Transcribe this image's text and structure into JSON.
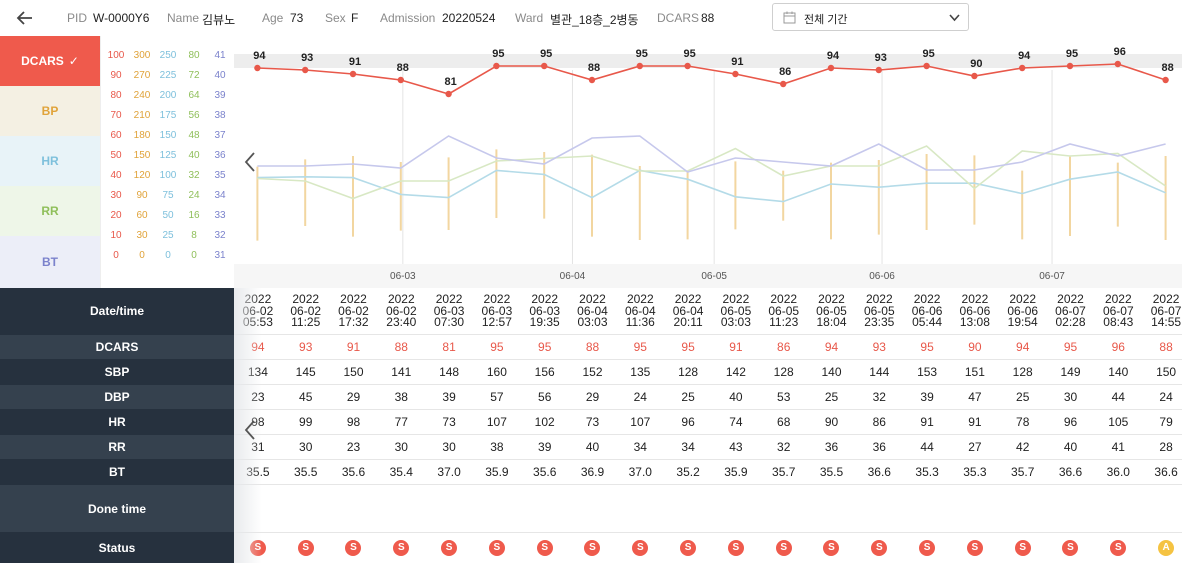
{
  "header": {
    "pid_label": "PID",
    "pid": "W-0000Y6",
    "name_label": "Name",
    "name": "김뷰노",
    "age_label": "Age",
    "age": "73",
    "sex_label": "Sex",
    "sex": "F",
    "admission_label": "Admission",
    "admission": "20220524",
    "ward_label": "Ward",
    "ward": "별관_18층_2병동",
    "dcars_label": "DCARS",
    "dcars": "88",
    "period_select": "전체 기간"
  },
  "legend": {
    "tabs": [
      {
        "label": "DCARS",
        "check": "✓",
        "color": "#ffffff",
        "bg": "#ef5a4c"
      },
      {
        "label": "BP",
        "color": "#e0a33a",
        "bg": "#f4f0e3"
      },
      {
        "label": "HR",
        "color": "#7ec0dc",
        "bg": "#e8f3f8"
      },
      {
        "label": "RR",
        "color": "#8fbf5a",
        "bg": "#eef6e8"
      },
      {
        "label": "BT",
        "color": "#7b82cc",
        "bg": "#eceef8"
      }
    ],
    "scales": [
      {
        "color": "#e8584a",
        "values": [
          "100",
          "90",
          "80",
          "70",
          "60",
          "50",
          "40",
          "30",
          "20",
          "10",
          "0"
        ]
      },
      {
        "color": "#e0a33a",
        "values": [
          "300",
          "270",
          "240",
          "210",
          "180",
          "150",
          "120",
          "90",
          "60",
          "30",
          "0"
        ]
      },
      {
        "color": "#7ec0dc",
        "values": [
          "250",
          "225",
          "200",
          "175",
          "150",
          "125",
          "100",
          "75",
          "50",
          "25",
          "0"
        ]
      },
      {
        "color": "#8fbf5a",
        "values": [
          "80",
          "72",
          "64",
          "56",
          "48",
          "40",
          "32",
          "24",
          "16",
          "8",
          "0"
        ]
      },
      {
        "color": "#7b82cc",
        "values": [
          "41",
          "40",
          "39",
          "38",
          "37",
          "36",
          "35",
          "34",
          "33",
          "32",
          "31"
        ]
      }
    ]
  },
  "colors": {
    "dcars": "#e8584a",
    "bp": "#f2d6a0",
    "hr": "#b4dbe8",
    "rr": "#d8e8c4",
    "bt": "#c6c8ec",
    "row_label_bg": "#26313e",
    "badge_s": "#ef5a4c",
    "badge_a": "#f5c342"
  },
  "chart_data": {
    "type": "line",
    "x_ticks": [
      "06-03",
      "06-04",
      "06-05",
      "06-06",
      "06-07"
    ],
    "series": [
      {
        "name": "DCARS",
        "values": [
          94,
          93,
          91,
          88,
          81,
          95,
          95,
          88,
          95,
          95,
          91,
          86,
          94,
          93,
          95,
          90,
          94,
          95,
          96,
          88
        ]
      },
      {
        "name": "SBP",
        "values": [
          134,
          145,
          150,
          141,
          148,
          160,
          156,
          152,
          135,
          128,
          142,
          128,
          140,
          144,
          153,
          151,
          128,
          149,
          140,
          150
        ]
      },
      {
        "name": "DBP",
        "values": [
          23,
          45,
          29,
          38,
          39,
          57,
          56,
          29,
          24,
          25,
          40,
          53,
          25,
          32,
          39,
          47,
          25,
          30,
          44,
          24
        ]
      },
      {
        "name": "HR",
        "values": [
          98,
          99,
          98,
          77,
          73,
          107,
          102,
          73,
          107,
          96,
          74,
          68,
          90,
          86,
          91,
          91,
          78,
          96,
          105,
          79
        ]
      },
      {
        "name": "RR",
        "values": [
          31,
          30,
          23,
          30,
          30,
          38,
          39,
          40,
          34,
          34,
          43,
          32,
          36,
          36,
          44,
          27,
          42,
          40,
          41,
          28
        ]
      },
      {
        "name": "BT",
        "values": [
          35.5,
          35.5,
          35.6,
          35.4,
          37.0,
          35.9,
          35.6,
          36.9,
          37.0,
          35.2,
          35.9,
          35.7,
          35.5,
          36.6,
          35.3,
          35.3,
          35.7,
          36.6,
          36.0,
          36.6
        ]
      }
    ]
  },
  "table": {
    "labels": {
      "datetime": "Date/time",
      "dcars": "DCARS",
      "sbp": "SBP",
      "dbp": "DBP",
      "hr": "HR",
      "rr": "RR",
      "bt": "BT",
      "done": "Done time",
      "status": "Status"
    },
    "columns": [
      {
        "year": "2022",
        "date": "06-02",
        "time": "05:53",
        "dcars": "94",
        "sbp": "134",
        "dbp": "23",
        "hr": "98",
        "rr": "31",
        "bt": "35.5",
        "status": "S"
      },
      {
        "year": "2022",
        "date": "06-02",
        "time": "11:25",
        "dcars": "93",
        "sbp": "145",
        "dbp": "45",
        "hr": "99",
        "rr": "30",
        "bt": "35.5",
        "status": "S"
      },
      {
        "year": "2022",
        "date": "06-02",
        "time": "17:32",
        "dcars": "91",
        "sbp": "150",
        "dbp": "29",
        "hr": "98",
        "rr": "23",
        "bt": "35.6",
        "status": "S"
      },
      {
        "year": "2022",
        "date": "06-02",
        "time": "23:40",
        "dcars": "88",
        "sbp": "141",
        "dbp": "38",
        "hr": "77",
        "rr": "30",
        "bt": "35.4",
        "status": "S"
      },
      {
        "year": "2022",
        "date": "06-03",
        "time": "07:30",
        "dcars": "81",
        "sbp": "148",
        "dbp": "39",
        "hr": "73",
        "rr": "30",
        "bt": "37.0",
        "status": "S"
      },
      {
        "year": "2022",
        "date": "06-03",
        "time": "12:57",
        "dcars": "95",
        "sbp": "160",
        "dbp": "57",
        "hr": "107",
        "rr": "38",
        "bt": "35.9",
        "status": "S"
      },
      {
        "year": "2022",
        "date": "06-03",
        "time": "19:35",
        "dcars": "95",
        "sbp": "156",
        "dbp": "56",
        "hr": "102",
        "rr": "39",
        "bt": "35.6",
        "status": "S"
      },
      {
        "year": "2022",
        "date": "06-04",
        "time": "03:03",
        "dcars": "88",
        "sbp": "152",
        "dbp": "29",
        "hr": "73",
        "rr": "40",
        "bt": "36.9",
        "status": "S"
      },
      {
        "year": "2022",
        "date": "06-04",
        "time": "11:36",
        "dcars": "95",
        "sbp": "135",
        "dbp": "24",
        "hr": "107",
        "rr": "34",
        "bt": "37.0",
        "status": "S"
      },
      {
        "year": "2022",
        "date": "06-04",
        "time": "20:11",
        "dcars": "95",
        "sbp": "128",
        "dbp": "25",
        "hr": "96",
        "rr": "34",
        "bt": "35.2",
        "status": "S"
      },
      {
        "year": "2022",
        "date": "06-05",
        "time": "03:03",
        "dcars": "91",
        "sbp": "142",
        "dbp": "40",
        "hr": "74",
        "rr": "43",
        "bt": "35.9",
        "status": "S"
      },
      {
        "year": "2022",
        "date": "06-05",
        "time": "11:23",
        "dcars": "86",
        "sbp": "128",
        "dbp": "53",
        "hr": "68",
        "rr": "32",
        "bt": "35.7",
        "status": "S"
      },
      {
        "year": "2022",
        "date": "06-05",
        "time": "18:04",
        "dcars": "94",
        "sbp": "140",
        "dbp": "25",
        "hr": "90",
        "rr": "36",
        "bt": "35.5",
        "status": "S"
      },
      {
        "year": "2022",
        "date": "06-05",
        "time": "23:35",
        "dcars": "93",
        "sbp": "144",
        "dbp": "32",
        "hr": "86",
        "rr": "36",
        "bt": "36.6",
        "status": "S"
      },
      {
        "year": "2022",
        "date": "06-06",
        "time": "05:44",
        "dcars": "95",
        "sbp": "153",
        "dbp": "39",
        "hr": "91",
        "rr": "44",
        "bt": "35.3",
        "status": "S"
      },
      {
        "year": "2022",
        "date": "06-06",
        "time": "13:08",
        "dcars": "90",
        "sbp": "151",
        "dbp": "47",
        "hr": "91",
        "rr": "27",
        "bt": "35.3",
        "status": "S"
      },
      {
        "year": "2022",
        "date": "06-06",
        "time": "19:54",
        "dcars": "94",
        "sbp": "128",
        "dbp": "25",
        "hr": "78",
        "rr": "42",
        "bt": "35.7",
        "status": "S"
      },
      {
        "year": "2022",
        "date": "06-07",
        "time": "02:28",
        "dcars": "95",
        "sbp": "149",
        "dbp": "30",
        "hr": "96",
        "rr": "40",
        "bt": "36.6",
        "status": "S"
      },
      {
        "year": "2022",
        "date": "06-07",
        "time": "08:43",
        "dcars": "96",
        "sbp": "140",
        "dbp": "44",
        "hr": "105",
        "rr": "41",
        "bt": "36.0",
        "status": "S"
      },
      {
        "year": "2022",
        "date": "06-07",
        "time": "14:55",
        "dcars": "88",
        "sbp": "150",
        "dbp": "24",
        "hr": "79",
        "rr": "28",
        "bt": "36.6",
        "status": "A"
      }
    ]
  }
}
